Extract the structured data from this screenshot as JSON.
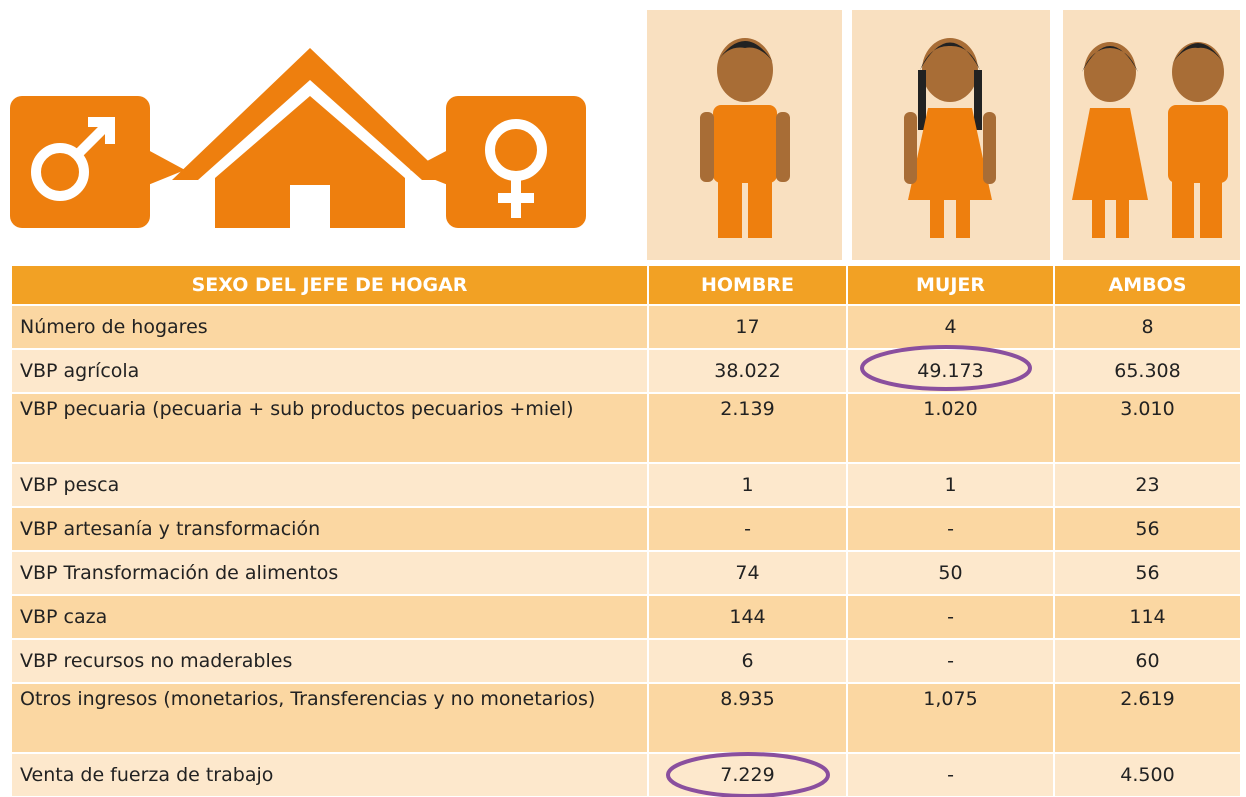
{
  "table": {
    "headers": [
      "SEXO DEL JEFE DE HOGAR",
      "HOMBRE",
      "MUJER",
      "AMBOS"
    ],
    "rows": [
      [
        "Número de hogares",
        "17",
        "4",
        "8"
      ],
      [
        "VBP agrícola",
        "38.022",
        "49.173",
        "65.308"
      ],
      [
        "VBP pecuaria (pecuaria + sub productos pecuarios +miel)",
        "2.139",
        "1.020",
        "3.010"
      ],
      [
        "VBP pesca",
        "1",
        "1",
        "23"
      ],
      [
        "VBP artesanía y transformación",
        "-",
        "-",
        "56"
      ],
      [
        "VBP Transformación de alimentos",
        "74",
        "50",
        "56"
      ],
      [
        "VBP caza",
        "144",
        "-",
        "114"
      ],
      [
        "VBP recursos no maderables",
        "6",
        "-",
        "60"
      ],
      [
        "Otros ingresos (monetarios, Transferencias y no monetarios)",
        "8.935",
        "1,075",
        "2.619"
      ],
      [
        "Venta de fuerza de trabajo",
        "7.229",
        "-",
        "4.500"
      ]
    ]
  }
}
